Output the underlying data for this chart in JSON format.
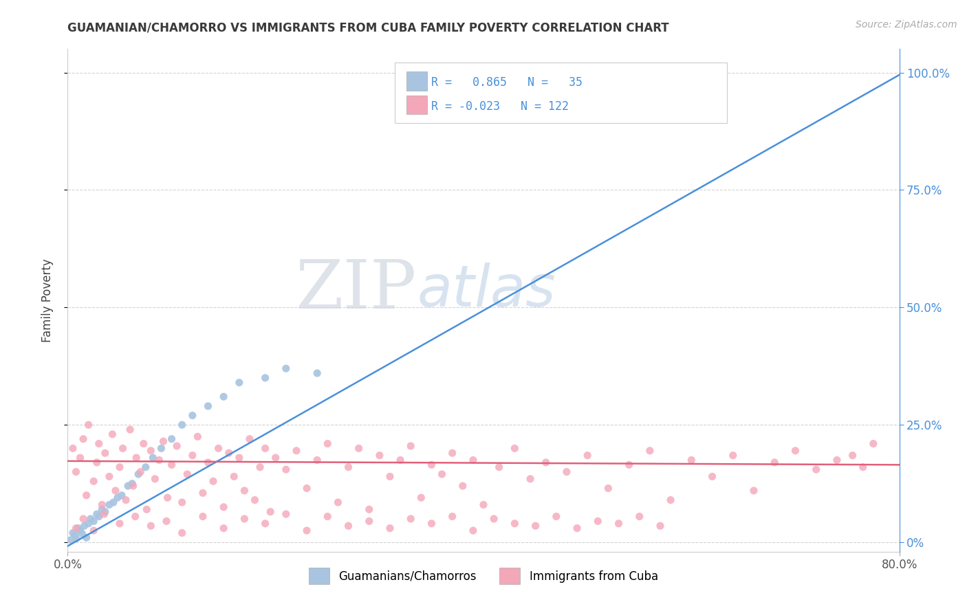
{
  "title": "GUAMANIAN/CHAMORRO VS IMMIGRANTS FROM CUBA FAMILY POVERTY CORRELATION CHART",
  "source": "Source: ZipAtlas.com",
  "ylabel": "Family Poverty",
  "legend_label1": "Guamanians/Chamorros",
  "legend_label2": "Immigrants from Cuba",
  "R1": 0.865,
  "N1": 35,
  "R2": -0.023,
  "N2": 122,
  "color1": "#a8c4e0",
  "color2": "#f4a7b9",
  "line_color1": "#4a90d9",
  "line_color2": "#e0607a",
  "background_color": "#ffffff",
  "grid_color": "#c8c8c8",
  "title_color": "#3a3a3a",
  "axis_label_color": "#555555",
  "right_tick_color": "#4a90d9",
  "x_min": 0.0,
  "x_max": 0.8,
  "y_min": -0.02,
  "y_max": 1.05,
  "guam_x": [
    0.003,
    0.005,
    0.007,
    0.008,
    0.01,
    0.012,
    0.014,
    0.016,
    0.018,
    0.02,
    0.022,
    0.025,
    0.028,
    0.03,
    0.033,
    0.036,
    0.04,
    0.044,
    0.048,
    0.052,
    0.058,
    0.062,
    0.068,
    0.075,
    0.082,
    0.09,
    0.1,
    0.11,
    0.12,
    0.135,
    0.15,
    0.165,
    0.19,
    0.21,
    0.24
  ],
  "guam_y": [
    0.005,
    0.02,
    0.015,
    0.008,
    0.03,
    0.025,
    0.018,
    0.035,
    0.01,
    0.04,
    0.05,
    0.045,
    0.06,
    0.055,
    0.07,
    0.065,
    0.08,
    0.085,
    0.095,
    0.1,
    0.12,
    0.125,
    0.145,
    0.16,
    0.18,
    0.2,
    0.22,
    0.25,
    0.27,
    0.29,
    0.31,
    0.34,
    0.35,
    0.37,
    0.36
  ],
  "cuba_x": [
    0.005,
    0.008,
    0.012,
    0.015,
    0.018,
    0.02,
    0.025,
    0.028,
    0.03,
    0.033,
    0.036,
    0.04,
    0.043,
    0.046,
    0.05,
    0.053,
    0.056,
    0.06,
    0.063,
    0.066,
    0.07,
    0.073,
    0.076,
    0.08,
    0.084,
    0.088,
    0.092,
    0.096,
    0.1,
    0.105,
    0.11,
    0.115,
    0.12,
    0.125,
    0.13,
    0.135,
    0.14,
    0.145,
    0.15,
    0.155,
    0.16,
    0.165,
    0.17,
    0.175,
    0.18,
    0.185,
    0.19,
    0.195,
    0.2,
    0.21,
    0.22,
    0.23,
    0.24,
    0.25,
    0.26,
    0.27,
    0.28,
    0.29,
    0.3,
    0.31,
    0.32,
    0.33,
    0.34,
    0.35,
    0.36,
    0.37,
    0.38,
    0.39,
    0.4,
    0.415,
    0.43,
    0.445,
    0.46,
    0.48,
    0.5,
    0.52,
    0.54,
    0.56,
    0.58,
    0.6,
    0.62,
    0.64,
    0.66,
    0.68,
    0.7,
    0.72,
    0.74,
    0.755,
    0.765,
    0.775,
    0.008,
    0.015,
    0.025,
    0.035,
    0.05,
    0.065,
    0.08,
    0.095,
    0.11,
    0.13,
    0.15,
    0.17,
    0.19,
    0.21,
    0.23,
    0.25,
    0.27,
    0.29,
    0.31,
    0.33,
    0.35,
    0.37,
    0.39,
    0.41,
    0.43,
    0.45,
    0.47,
    0.49,
    0.51,
    0.53,
    0.55,
    0.57
  ],
  "cuba_y": [
    0.2,
    0.15,
    0.18,
    0.22,
    0.1,
    0.25,
    0.13,
    0.17,
    0.21,
    0.08,
    0.19,
    0.14,
    0.23,
    0.11,
    0.16,
    0.2,
    0.09,
    0.24,
    0.12,
    0.18,
    0.15,
    0.21,
    0.07,
    0.195,
    0.135,
    0.175,
    0.215,
    0.095,
    0.165,
    0.205,
    0.085,
    0.145,
    0.185,
    0.225,
    0.105,
    0.17,
    0.13,
    0.2,
    0.075,
    0.19,
    0.14,
    0.18,
    0.11,
    0.22,
    0.09,
    0.16,
    0.2,
    0.065,
    0.18,
    0.155,
    0.195,
    0.115,
    0.175,
    0.21,
    0.085,
    0.16,
    0.2,
    0.07,
    0.185,
    0.14,
    0.175,
    0.205,
    0.095,
    0.165,
    0.145,
    0.19,
    0.12,
    0.175,
    0.08,
    0.16,
    0.2,
    0.135,
    0.17,
    0.15,
    0.185,
    0.115,
    0.165,
    0.195,
    0.09,
    0.175,
    0.14,
    0.185,
    0.11,
    0.17,
    0.195,
    0.155,
    0.175,
    0.185,
    0.16,
    0.21,
    0.03,
    0.05,
    0.025,
    0.06,
    0.04,
    0.055,
    0.035,
    0.045,
    0.02,
    0.055,
    0.03,
    0.05,
    0.04,
    0.06,
    0.025,
    0.055,
    0.035,
    0.045,
    0.03,
    0.05,
    0.04,
    0.055,
    0.025,
    0.05,
    0.04,
    0.035,
    0.055,
    0.03,
    0.045,
    0.04,
    0.055,
    0.035
  ],
  "line1_x": [
    0.0,
    0.8
  ],
  "line1_y": [
    -0.008,
    0.995
  ],
  "line2_x": [
    0.0,
    0.8
  ],
  "line2_y": [
    0.173,
    0.165
  ]
}
